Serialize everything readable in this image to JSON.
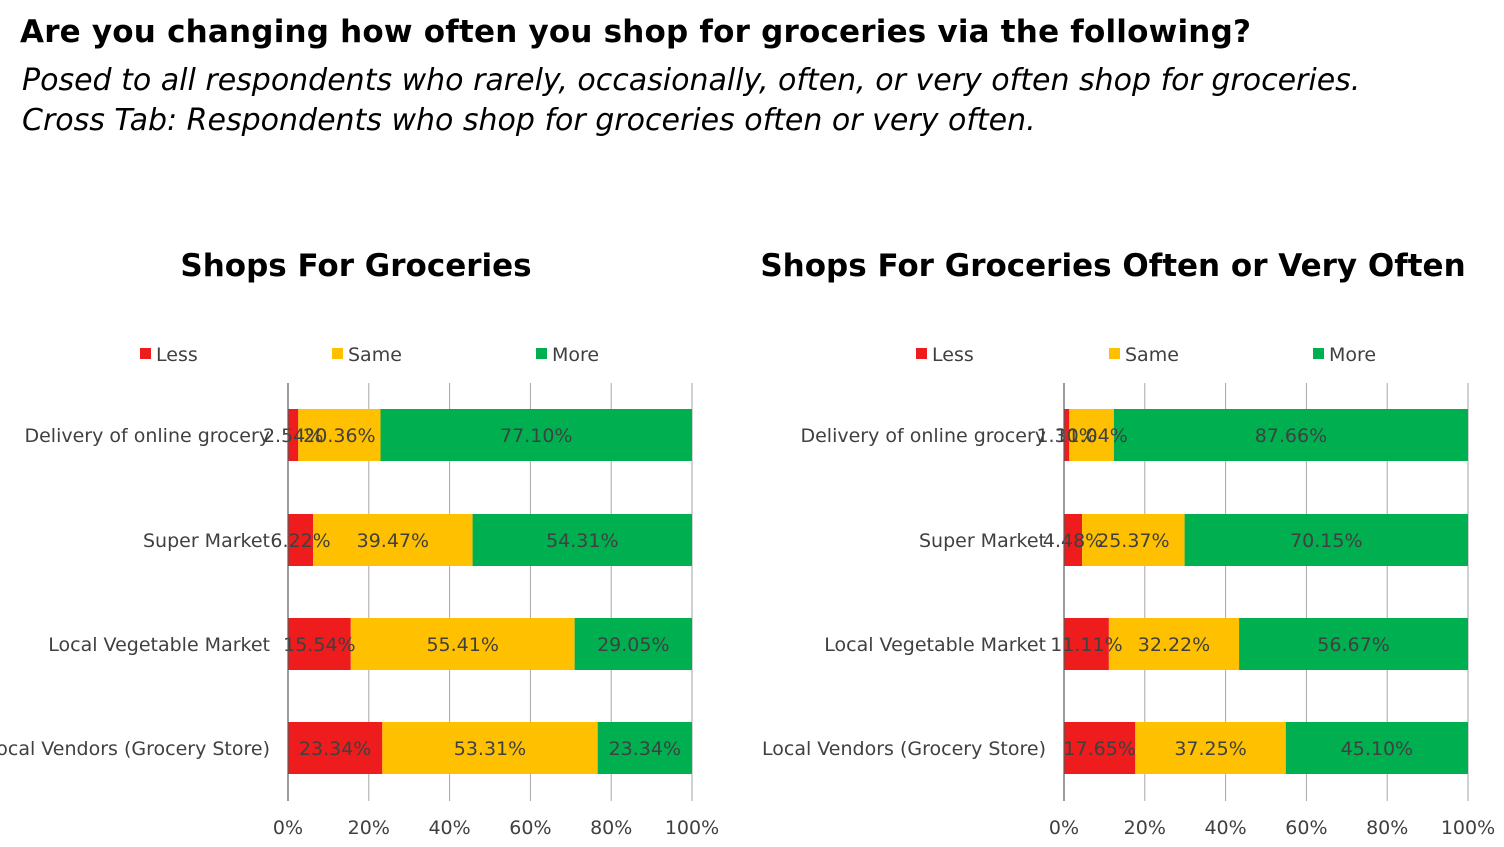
{
  "header": {
    "title": "Are you changing how often you shop for groceries via the following?",
    "subtitle1": "Posed to all respondents who rarely, occasionally, often, or very often shop for groceries.",
    "subtitle2": "Cross Tab: Respondents who shop for groceries often or very often."
  },
  "colors": {
    "Less": "#ee1c1c",
    "Same": "#ffc000",
    "More": "#00b050",
    "grid": "#a6a6a6",
    "axis": "#595959"
  },
  "chart_data": [
    {
      "type": "bar",
      "orientation": "horizontal-stacked-100",
      "title": "Shops For Groceries",
      "categories": [
        "Delivery of online grocery",
        "Super Market",
        "Local Vegetable Market",
        "Local Vendors (Grocery Store)"
      ],
      "series": [
        {
          "name": "Less",
          "values": [
            2.54,
            6.22,
            15.54,
            23.34
          ],
          "labels": [
            "2.54%",
            "6.22%",
            "15.54%",
            "23.34%"
          ]
        },
        {
          "name": "Same",
          "values": [
            20.36,
            39.47,
            55.41,
            53.31
          ],
          "labels": [
            "20.36%",
            "39.47%",
            "55.41%",
            "53.31%"
          ]
        },
        {
          "name": "More",
          "values": [
            77.1,
            54.31,
            29.05,
            23.34
          ],
          "labels": [
            "77.10%",
            "54.31%",
            "29.05%",
            "23.34%"
          ]
        }
      ],
      "xlim": [
        0,
        100
      ],
      "x_ticks": [
        "0%",
        "20%",
        "40%",
        "60%",
        "80%",
        "100%"
      ],
      "legend": "top",
      "grid": true
    },
    {
      "type": "bar",
      "orientation": "horizontal-stacked-100",
      "title": "Shops For Groceries Often or Very Often",
      "categories": [
        "Delivery of online grocery",
        "Super Market",
        "Local Vegetable Market",
        "Local Vendors (Grocery Store)"
      ],
      "series": [
        {
          "name": "Less",
          "values": [
            1.3,
            4.48,
            11.11,
            17.65
          ],
          "labels": [
            "1.30%",
            "4.48%",
            "11.11%",
            "17.65%"
          ]
        },
        {
          "name": "Same",
          "values": [
            11.04,
            25.37,
            32.22,
            37.25
          ],
          "labels": [
            "11.04%",
            "25.37%",
            "32.22%",
            "37.25%"
          ]
        },
        {
          "name": "More",
          "values": [
            87.66,
            70.15,
            56.67,
            45.1
          ],
          "labels": [
            "87.66%",
            "70.15%",
            "56.67%",
            "45.10%"
          ]
        }
      ],
      "xlim": [
        0,
        100
      ],
      "x_ticks": [
        "0%",
        "20%",
        "40%",
        "60%",
        "80%",
        "100%"
      ],
      "legend": "top",
      "grid": true
    }
  ]
}
